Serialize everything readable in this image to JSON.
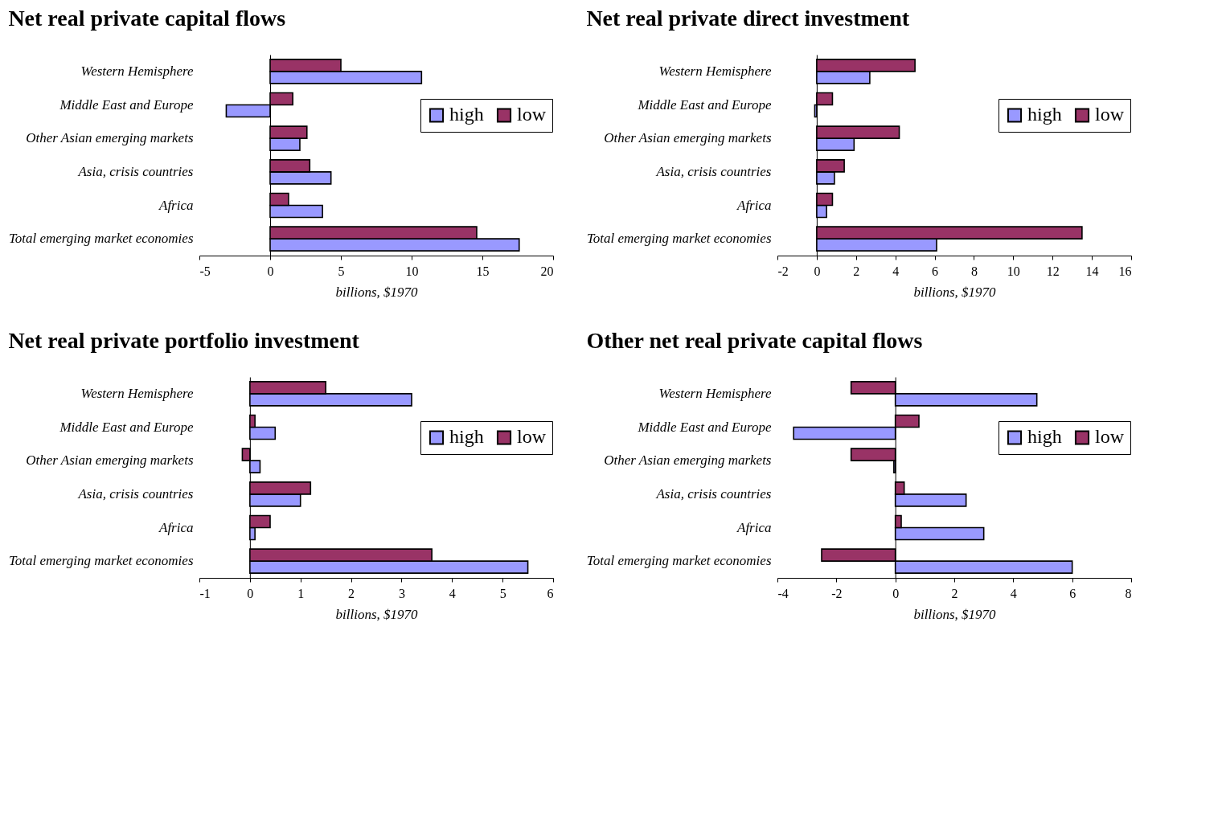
{
  "chart_data": [
    {
      "type": "bar",
      "orientation": "horizontal",
      "title": "Net real private capital flows",
      "xlabel": "billions, $1970",
      "categories": [
        "Western Hemisphere",
        "Middle East and Europe",
        "Other Asian emerging markets",
        "Asia, crisis countries",
        "Africa",
        "Total emerging market economies"
      ],
      "series": [
        {
          "name": "high",
          "color": "#9999ff",
          "values": [
            10.7,
            -3.1,
            2.1,
            4.3,
            3.7,
            17.6
          ]
        },
        {
          "name": "low",
          "color": "#993366",
          "values": [
            5.0,
            1.6,
            2.6,
            2.8,
            1.3,
            14.6
          ]
        }
      ],
      "xlim": [
        -5,
        20
      ],
      "xticks": [
        -5,
        0,
        5,
        10,
        15,
        20
      ],
      "legend": "right"
    },
    {
      "type": "bar",
      "orientation": "horizontal",
      "title": "Net real private direct investment",
      "xlabel": "billions, $1970",
      "categories": [
        "Western Hemisphere",
        "Middle East and Europe",
        "Other Asian emerging markets",
        "Asia, crisis countries",
        "Africa",
        "Total emerging market economies"
      ],
      "series": [
        {
          "name": "high",
          "color": "#9999ff",
          "values": [
            2.7,
            -0.1,
            1.9,
            0.9,
            0.5,
            6.1
          ]
        },
        {
          "name": "low",
          "color": "#993366",
          "values": [
            5.0,
            0.8,
            4.2,
            1.4,
            0.8,
            13.5
          ]
        }
      ],
      "xlim": [
        -2,
        16
      ],
      "xticks": [
        -2,
        0,
        2,
        4,
        6,
        8,
        10,
        12,
        14,
        16
      ],
      "legend": "right"
    },
    {
      "type": "bar",
      "orientation": "horizontal",
      "title": "Net real private portfolio investment",
      "xlabel": "billions, $1970",
      "categories": [
        "Western Hemisphere",
        "Middle East and Europe",
        "Other Asian emerging markets",
        "Asia, crisis countries",
        "Africa",
        "Total emerging market economies"
      ],
      "series": [
        {
          "name": "high",
          "color": "#9999ff",
          "values": [
            3.2,
            0.5,
            0.2,
            1.0,
            0.1,
            5.5
          ]
        },
        {
          "name": "low",
          "color": "#993366",
          "values": [
            1.5,
            0.1,
            -0.15,
            1.2,
            0.4,
            3.6
          ]
        }
      ],
      "xlim": [
        -1,
        6
      ],
      "xticks": [
        -1,
        0,
        1,
        2,
        3,
        4,
        5,
        6
      ],
      "legend": "right"
    },
    {
      "type": "bar",
      "orientation": "horizontal",
      "title": "Other net real private capital flows",
      "xlabel": "billions, $1970",
      "categories": [
        "Western Hemisphere",
        "Middle East and Europe",
        "Other Asian emerging markets",
        "Asia, crisis countries",
        "Africa",
        "Total emerging market economies"
      ],
      "series": [
        {
          "name": "high",
          "color": "#9999ff",
          "values": [
            4.8,
            -3.45,
            -0.05,
            2.4,
            3.0,
            6.0
          ]
        },
        {
          "name": "low",
          "color": "#993366",
          "values": [
            -1.5,
            0.8,
            -1.5,
            0.3,
            0.2,
            -2.5
          ]
        }
      ],
      "xlim": [
        -4,
        8
      ],
      "xticks": [
        -4,
        -2,
        0,
        2,
        4,
        6,
        8
      ],
      "legend": "right"
    }
  ]
}
